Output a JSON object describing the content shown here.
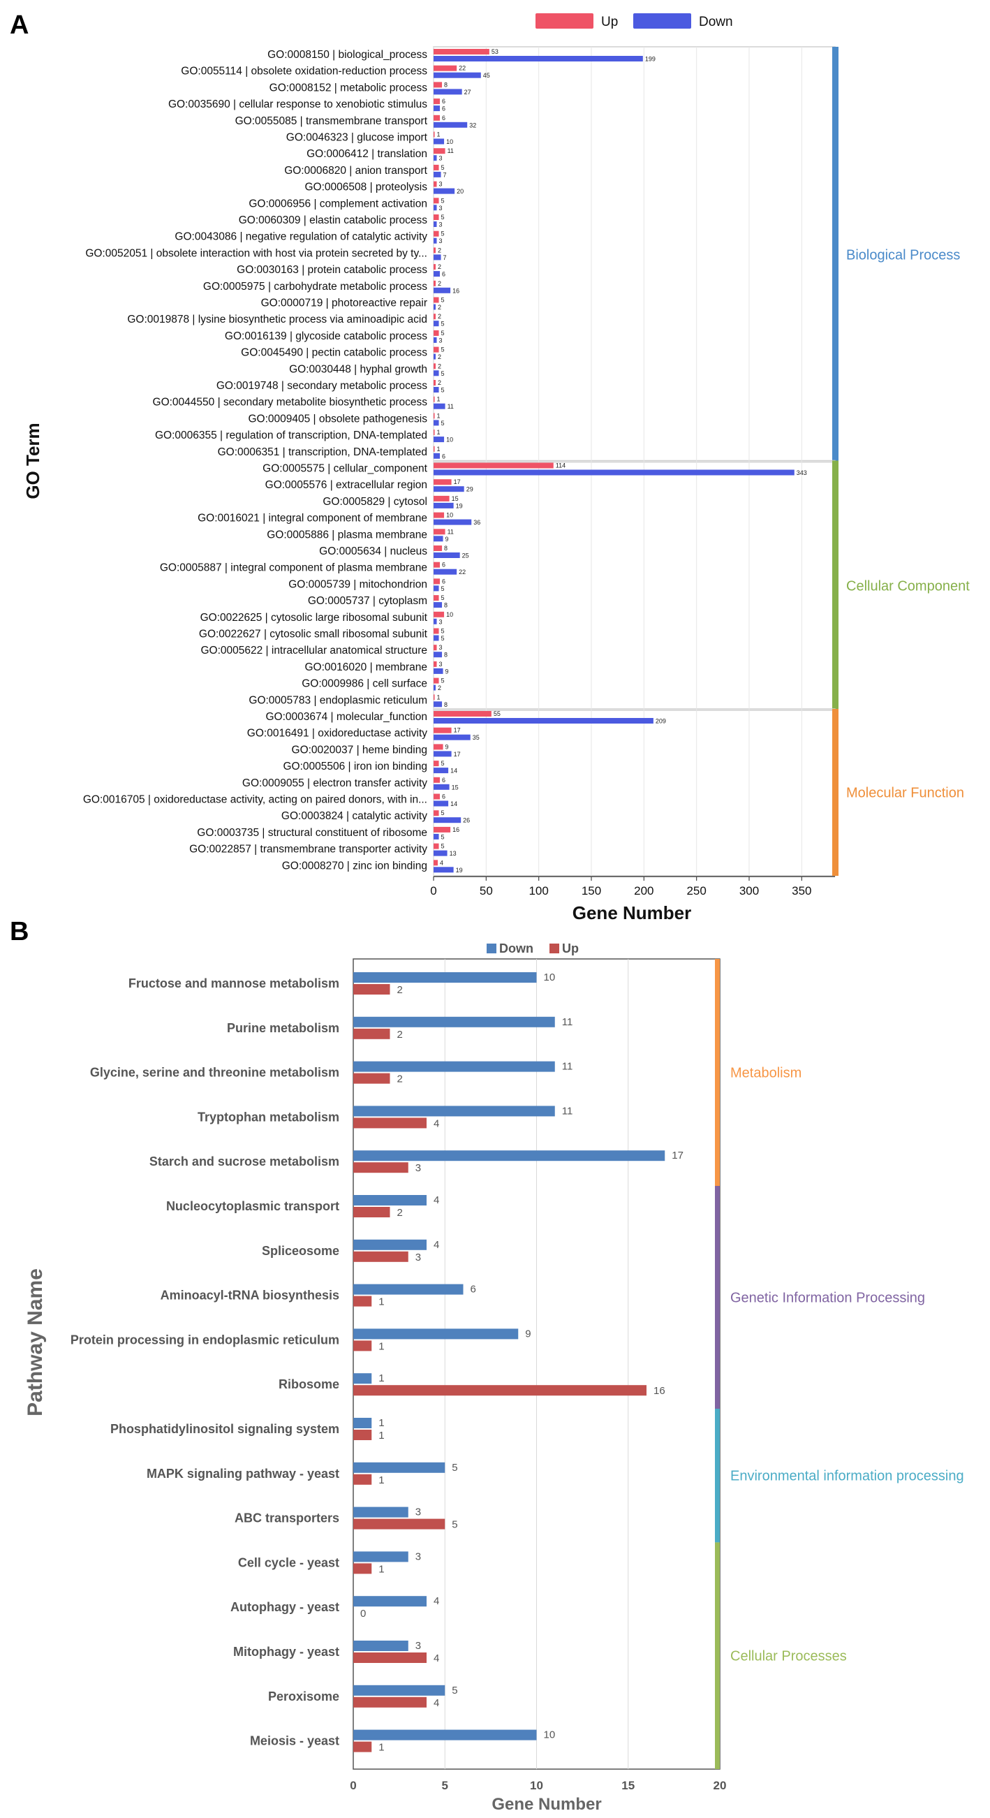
{
  "panels": {
    "a_label": "A",
    "b_label": "B"
  },
  "chart_data": [
    {
      "type": "bar",
      "orientation": "horizontal",
      "xlabel": "Gene Number",
      "ylabel": "GO Term",
      "xlim": [
        0,
        375
      ],
      "xticks": [
        0,
        50,
        100,
        150,
        200,
        250,
        300,
        350
      ],
      "legend": {
        "position": "top",
        "up_label": "Up",
        "down_label": "Down"
      },
      "colors": {
        "up": "#ef5366",
        "down": "#4b5ae0"
      },
      "grid": true,
      "groups": [
        {
          "name": "Biological Process",
          "color": "#4a8ac9",
          "count": 25
        },
        {
          "name": "Cellular Component",
          "color": "#86b04a",
          "count": 15
        },
        {
          "name": "Molecular Function",
          "color": "#ef8f3a",
          "count": 10
        }
      ],
      "categories": [
        "GO:0008150 | biological_process",
        "GO:0055114 | obsolete oxidation-reduction process",
        "GO:0008152 | metabolic process",
        "GO:0035690 | cellular response to xenobiotic stimulus",
        "GO:0055085 | transmembrane transport",
        "GO:0046323 | glucose import",
        "GO:0006412 | translation",
        "GO:0006820 | anion transport",
        "GO:0006508 | proteolysis",
        "GO:0006956 | complement activation",
        "GO:0060309 | elastin catabolic process",
        "GO:0043086 | negative regulation of catalytic activity",
        "GO:0052051 | obsolete interaction with host via protein secreted by ty...",
        "GO:0030163 | protein catabolic process",
        "GO:0005975 | carbohydrate metabolic process",
        "GO:0000719 | photoreactive repair",
        "GO:0019878 | lysine biosynthetic process via aminoadipic acid",
        "GO:0016139 | glycoside catabolic process",
        "GO:0045490 | pectin catabolic process",
        "GO:0030448 | hyphal growth",
        "GO:0019748 | secondary metabolic process",
        "GO:0044550 | secondary metabolite biosynthetic process",
        "GO:0009405 | obsolete pathogenesis",
        "GO:0006355 | regulation of transcription, DNA-templated",
        "GO:0006351 | transcription, DNA-templated",
        "GO:0005575 | cellular_component",
        "GO:0005576 | extracellular region",
        "GO:0005829 | cytosol",
        "GO:0016021 | integral component of membrane",
        "GO:0005886 | plasma membrane",
        "GO:0005634 | nucleus",
        "GO:0005887 | integral component of plasma membrane",
        "GO:0005739 | mitochondrion",
        "GO:0005737 | cytoplasm",
        "GO:0022625 | cytosolic large ribosomal subunit",
        "GO:0022627 | cytosolic small ribosomal subunit",
        "GO:0005622 | intracellular anatomical structure",
        "GO:0016020 | membrane",
        "GO:0009986 | cell surface",
        "GO:0005783 | endoplasmic reticulum",
        "GO:0003674 | molecular_function",
        "GO:0016491 | oxidoreductase activity",
        "GO:0020037 | heme binding",
        "GO:0005506 | iron ion binding",
        "GO:0009055 | electron transfer activity",
        "GO:0016705 | oxidoreductase activity, acting on paired donors, with in...",
        "GO:0003824 | catalytic activity",
        "GO:0003735 | structural constituent of ribosome",
        "GO:0022857 | transmembrane transporter activity",
        "GO:0008270 | zinc ion binding"
      ],
      "series": [
        {
          "name": "Up",
          "values": [
            53,
            22,
            8,
            6,
            6,
            1,
            11,
            5,
            3,
            5,
            5,
            5,
            2,
            2,
            2,
            5,
            2,
            5,
            5,
            2,
            2,
            1,
            1,
            1,
            1,
            114,
            17,
            15,
            10,
            11,
            8,
            6,
            6,
            5,
            10,
            5,
            3,
            3,
            5,
            1,
            55,
            17,
            9,
            5,
            6,
            6,
            5,
            16,
            5,
            4
          ]
        },
        {
          "name": "Down",
          "values": [
            199,
            45,
            27,
            6,
            32,
            10,
            3,
            7,
            20,
            3,
            3,
            3,
            7,
            6,
            16,
            2,
            5,
            3,
            2,
            5,
            5,
            11,
            5,
            10,
            6,
            343,
            29,
            19,
            36,
            9,
            25,
            22,
            5,
            8,
            3,
            5,
            8,
            9,
            2,
            8,
            209,
            35,
            17,
            14,
            15,
            14,
            26,
            5,
            13,
            19
          ]
        }
      ]
    },
    {
      "type": "bar",
      "orientation": "horizontal",
      "xlabel": "Gene Number",
      "ylabel": "Pathway Name",
      "xlim": [
        0,
        20
      ],
      "xticks": [
        0,
        5,
        10,
        15,
        20
      ],
      "legend": {
        "position": "top",
        "down_label": "Down",
        "up_label": "Up"
      },
      "colors": {
        "down": "#4f81bd",
        "up": "#c0504d"
      },
      "grid": true,
      "groups": [
        {
          "name": "Metabolism",
          "color": "#f79646",
          "count": 5
        },
        {
          "name": "Genetic Information Processing",
          "color": "#8064a2",
          "count": 5
        },
        {
          "name": "Environmental information processing",
          "color": "#4bacc6",
          "count": 3
        },
        {
          "name": "Cellular Processes",
          "color": "#9bbb59",
          "count": 5
        }
      ],
      "categories": [
        "Fructose and mannose metabolism",
        "Purine metabolism",
        "Glycine, serine and threonine metabolism",
        "Tryptophan metabolism",
        "Starch and sucrose metabolism",
        "Nucleocytoplasmic transport",
        "Spliceosome",
        "Aminoacyl-tRNA biosynthesis",
        "Protein processing in endoplasmic reticulum",
        "Ribosome",
        "Phosphatidylinositol signaling system",
        "MAPK signaling pathway - yeast",
        "ABC transporters",
        "Cell cycle - yeast",
        "Autophagy - yeast",
        "Mitophagy - yeast",
        "Peroxisome",
        "Meiosis - yeast"
      ],
      "series": [
        {
          "name": "Down",
          "values": [
            10,
            11,
            11,
            11,
            17,
            4,
            4,
            6,
            9,
            1,
            1,
            5,
            3,
            3,
            4,
            3,
            5,
            10
          ]
        },
        {
          "name": "Up",
          "values": [
            2,
            2,
            2,
            4,
            3,
            2,
            3,
            1,
            1,
            16,
            1,
            1,
            5,
            1,
            0,
            4,
            4,
            1
          ]
        }
      ]
    }
  ]
}
